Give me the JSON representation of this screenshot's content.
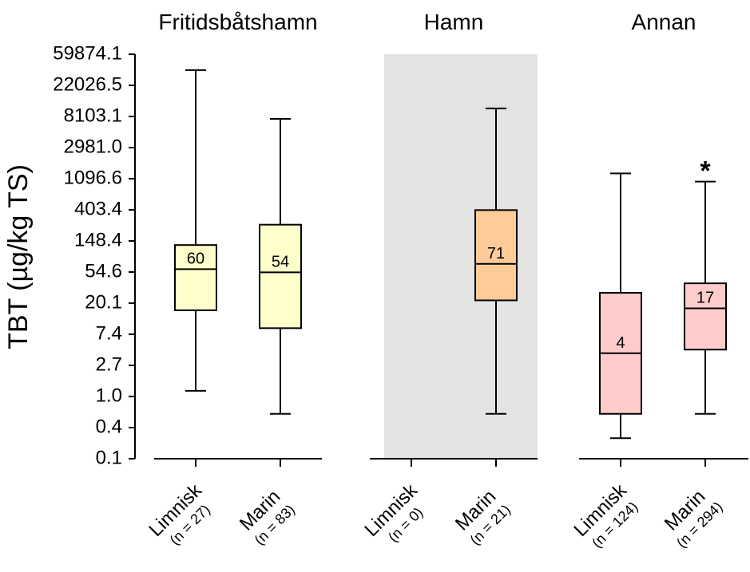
{
  "chart_data": {
    "type": "boxplot",
    "ylabel": "TBT (µg/kg TS)",
    "y_scale": "log",
    "y_ticks": [
      {
        "value": 0.1,
        "label": "0.1"
      },
      {
        "value": 0.4,
        "label": "0.4"
      },
      {
        "value": 1.0,
        "label": "1.0"
      },
      {
        "value": 2.7,
        "label": "2.7"
      },
      {
        "value": 7.4,
        "label": "7.4"
      },
      {
        "value": 20.1,
        "label": "20.1"
      },
      {
        "value": 54.6,
        "label": "54.6"
      },
      {
        "value": 148.4,
        "label": "148.4"
      },
      {
        "value": 403.4,
        "label": "403.4"
      },
      {
        "value": 1096.6,
        "label": "1096.6"
      },
      {
        "value": 2981.0,
        "label": "2981.0"
      },
      {
        "value": 8103.1,
        "label": "8103.1"
      },
      {
        "value": 22026.5,
        "label": "22026.5"
      },
      {
        "value": 59874.1,
        "label": "59874.1"
      }
    ],
    "panels": [
      {
        "title": "Fritidsbåtshamn",
        "shaded": false,
        "color": "#ffffcc",
        "groups": [
          {
            "category": "Limnisk",
            "n_label": "(n = 27)",
            "min": 1.2,
            "q1": 16.0,
            "median": 60,
            "q3": 130.0,
            "max": 36000.0,
            "median_label": "60",
            "annotation": ""
          },
          {
            "category": "Marin",
            "n_label": "(n = 83)",
            "min": 0.6,
            "q1": 9.0,
            "median": 54,
            "q3": 250.0,
            "max": 7500.0,
            "median_label": "54",
            "annotation": ""
          }
        ]
      },
      {
        "title": "Hamn",
        "shaded": true,
        "color": "#ffcc99",
        "groups": [
          {
            "category": "Limnisk",
            "n_label": "(n = 0)",
            "annotation": ""
          },
          {
            "category": "Marin",
            "n_label": "(n = 21)",
            "min": 0.6,
            "q1": 22.0,
            "median": 71,
            "q3": 400.0,
            "max": 10500.0,
            "median_label": "71",
            "annotation": ""
          }
        ]
      },
      {
        "title": "Annan",
        "shaded": false,
        "color": "#ffcccc",
        "groups": [
          {
            "category": "Limnisk",
            "n_label": "(n = 124)",
            "min": 0.25,
            "q1": 0.6,
            "median": 4,
            "q3": 28.0,
            "max": 1300.0,
            "median_label": "4",
            "annotation": ""
          },
          {
            "category": "Marin",
            "n_label": "(n = 294)",
            "min": 0.6,
            "q1": 4.5,
            "median": 17,
            "q3": 38.0,
            "max": 1000.0,
            "median_label": "17",
            "annotation": "*"
          }
        ]
      }
    ]
  }
}
